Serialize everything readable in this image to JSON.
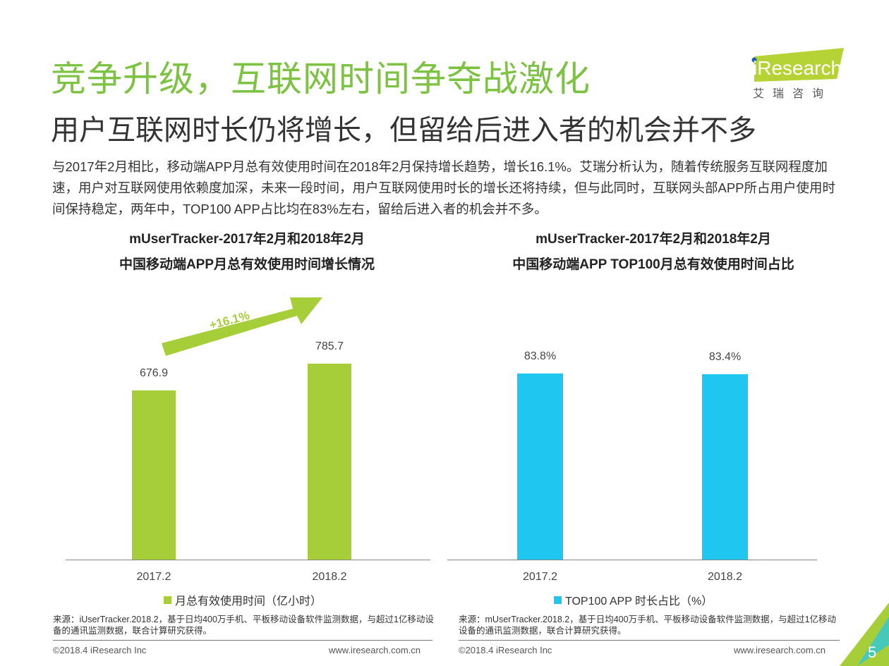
{
  "header": {
    "title": "竞争升级，互联网时间争夺战激化",
    "subtitle": "用户互联网时长仍将增长，但留给后进入者的机会并不多",
    "paragraph": "与2017年2月相比，移动端APP月总有效使用时间在2018年2月保持增长趋势，增长16.1%。艾瑞分析认为，随着传统服务互联网程度加速，用户对互联网使用依赖度加深，未来一段时间，用户互联网使用时长的增长还将持续，但与此同时，互联网头部APP所占用户使用时间保持稳定，两年中，TOP100 APP占比均在83%左右，留给后进入者的机会并不多。"
  },
  "logo": {
    "brand": "iResearch",
    "cn": "艾 瑞 咨 询"
  },
  "chart_data": [
    {
      "type": "bar",
      "title_line1": "mUserTracker-2017年2月和2018年2月",
      "title_line2": "中国移动端APP月总有效使用时间增长情况",
      "categories": [
        "2017.2",
        "2018.2"
      ],
      "values": [
        676.9,
        785.7
      ],
      "value_labels": [
        "676.9",
        "785.7"
      ],
      "legend": "月总有效使用时间（亿小时）",
      "annotation": "+16.1%",
      "color": "#a6ce39",
      "ylim": [
        0,
        890
      ]
    },
    {
      "type": "bar",
      "title_line1": "mUserTracker-2017年2月和2018年2月",
      "title_line2": "中国移动端APP TOP100月总有效使用时间占比",
      "categories": [
        "2017.2",
        "2018.2"
      ],
      "values": [
        83.8,
        83.4
      ],
      "value_labels": [
        "83.8%",
        "83.4%"
      ],
      "legend": "TOP100 APP 时长占比（%）",
      "color": "#1fc6ef",
      "ylim": [
        0,
        100
      ]
    }
  ],
  "sources": [
    "来源：iUserTracker.2018.2，基于日均400万手机、平板移动设备软件监测数据，与超过1亿移动设备的通讯监测数据，联合计算研究获得。",
    "来源：mUserTracker.2018.2，基于日均400万手机、平板移动设备软件监测数据，与超过1亿移动设备的通讯监测数据，联合计算研究获得。"
  ],
  "footer": {
    "copyright": "©2018.4 iResearch Inc",
    "url": "www.iresearch.com.cn",
    "page": "5"
  }
}
